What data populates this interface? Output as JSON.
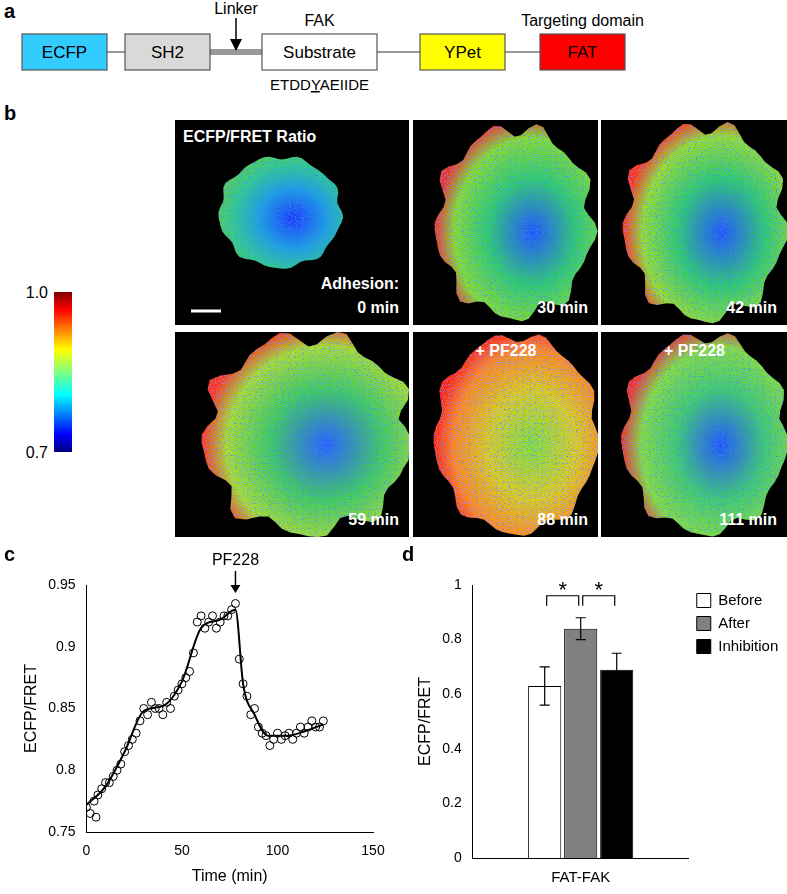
{
  "diagram": {
    "panel_label": "a",
    "domains": [
      {
        "label": "ECFP",
        "color": "#33ccff"
      },
      {
        "label": "SH2",
        "color": "#d9d9d9"
      },
      {
        "label": "Substrate",
        "color": "#ffffff",
        "above": "FAK",
        "below": [
          "ETDD",
          "Y",
          "AEIIDE"
        ]
      },
      {
        "label": "YPet",
        "color": "#ffff00"
      },
      {
        "label": "FAT",
        "color": "#ff0000",
        "above": "Targeting domain"
      }
    ],
    "linker": {
      "label": "Linker",
      "after": "SH2"
    }
  },
  "images": {
    "panel_label": "b",
    "title": "ECFP/FRET Ratio",
    "colorbar": {
      "range": [
        0.7,
        1.0
      ],
      "ticks": [
        {
          "value": 1,
          "label": "1.0"
        },
        0.7
      ]
    },
    "frames": [
      {
        "prefix": "Adhesion:",
        "label": "0 min"
      },
      {
        "label": "30 min"
      },
      {
        "label": "42 min"
      },
      {
        "label": "59 min"
      },
      {
        "treatment": "+ PF228",
        "label": "88 min"
      },
      {
        "treatment": "+ PF228",
        "label": "111 min"
      }
    ]
  },
  "chart_data": [
    {
      "panel_label": "c",
      "type": "scatter",
      "x_label": "Time (min)",
      "y_label": "ECFP/FRET",
      "xlim": [
        0,
        150
      ],
      "xticks": [
        0,
        50,
        100,
        150
      ],
      "ylim": [
        0.75,
        0.95
      ],
      "yticks": [
        0.75,
        0.8,
        0.85,
        0.9,
        0.95
      ],
      "grid": false,
      "series": [
        {
          "color": "#000000",
          "marker": "open_circle",
          "x": [
            0,
            2,
            4,
            5,
            6,
            8,
            10,
            12,
            14,
            16,
            18,
            20,
            22,
            24,
            26,
            28,
            30,
            32,
            34,
            36,
            38,
            40,
            42,
            44,
            46,
            48,
            50,
            52,
            54,
            56,
            58,
            60,
            62,
            64,
            66,
            68,
            70,
            72,
            74,
            76,
            78,
            80,
            82,
            84,
            86,
            88,
            90,
            92,
            94,
            96,
            98,
            100,
            102,
            104,
            106,
            108,
            110,
            112,
            114,
            116,
            118,
            120,
            122,
            124
          ],
          "values": [
            0.77,
            0.765,
            0.775,
            0.762,
            0.78,
            0.785,
            0.79,
            0.79,
            0.795,
            0.8,
            0.805,
            0.815,
            0.82,
            0.825,
            0.83,
            0.84,
            0.85,
            0.845,
            0.855,
            0.85,
            0.85,
            0.845,
            0.855,
            0.85,
            0.86,
            0.865,
            0.87,
            0.875,
            0.88,
            0.895,
            0.92,
            0.925,
            0.915,
            0.92,
            0.925,
            0.915,
            0.92,
            0.925,
            0.925,
            0.93,
            0.935,
            0.89,
            0.87,
            0.86,
            0.845,
            0.85,
            0.835,
            0.83,
            0.828,
            0.82,
            0.825,
            0.83,
            0.825,
            0.828,
            0.83,
            0.825,
            0.83,
            0.835,
            0.83,
            0.835,
            0.84,
            0.835,
            0.835,
            0.84
          ]
        },
        {
          "color": "#000000",
          "type": "line",
          "line_style": "solid",
          "x": [
            0,
            10,
            20,
            30,
            40,
            50,
            60,
            70,
            78,
            82,
            88,
            95,
            105,
            115,
            124
          ],
          "values": [
            0.772,
            0.787,
            0.815,
            0.848,
            0.852,
            0.872,
            0.915,
            0.922,
            0.93,
            0.87,
            0.845,
            0.828,
            0.828,
            0.832,
            0.837
          ]
        }
      ],
      "annotations": [
        {
          "text": "PF228",
          "x": 78
        }
      ]
    },
    {
      "panel_label": "d",
      "type": "bar",
      "categories": [
        "FAT-FAK"
      ],
      "y_label": "ECFP/FRET",
      "ylim": [
        0,
        1
      ],
      "yticks": [
        0,
        0.2,
        0.4,
        0.6,
        0.8,
        1
      ],
      "grid": false,
      "legend": "upper right",
      "series": [
        {
          "name": "Before",
          "color": "#ffffff",
          "values": [
            0.63
          ],
          "errors": [
            0.07
          ]
        },
        {
          "name": "After",
          "color": "#808080",
          "values": [
            0.84
          ],
          "errors": [
            0.04
          ]
        },
        {
          "name": "Inhibition",
          "color": "#000000",
          "values": [
            0.69
          ],
          "errors": [
            0.06
          ]
        }
      ],
      "annotations": [
        {
          "text": "*",
          "between": [
            "Before",
            "After"
          ]
        },
        {
          "text": "*",
          "between": [
            "After",
            "Inhibition"
          ]
        }
      ]
    }
  ]
}
